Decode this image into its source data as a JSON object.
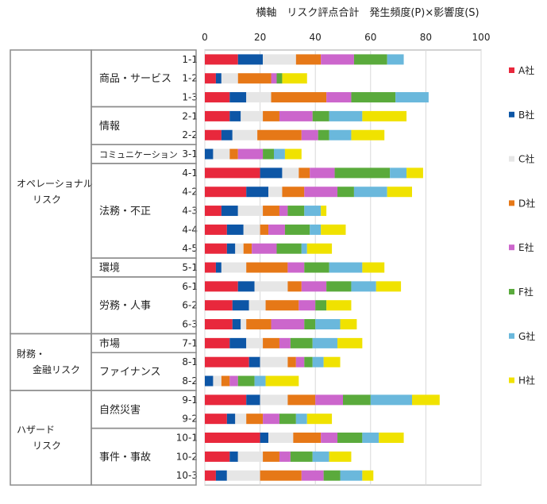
{
  "chart_data": {
    "type": "bar",
    "orientation": "horizontal",
    "stacked": true,
    "title": "横軸　リスク評点合計　発生頻度(P)×影響度(S)",
    "xlim": [
      0,
      100
    ],
    "xticks": [
      0,
      20,
      40,
      60,
      80,
      100
    ],
    "grid": "vertical",
    "legend_position": "right",
    "categories": [
      "1-1",
      "1-2",
      "1-3",
      "2-1",
      "2-2",
      "3-1",
      "4-1",
      "4-2",
      "4-3",
      "4-4",
      "4-5",
      "5-1",
      "6-1",
      "6-2",
      "6-3",
      "7-1",
      "8-1",
      "8-2",
      "9-1",
      "9-2",
      "10-1",
      "10-2",
      "10-3"
    ],
    "series": [
      {
        "name": "A社",
        "color": "#e8283c",
        "values": [
          12,
          4,
          9,
          9,
          6,
          0,
          20,
          15,
          6,
          8,
          8,
          4,
          12,
          10,
          10,
          9,
          16,
          0,
          15,
          8,
          20,
          9,
          4
        ]
      },
      {
        "name": "B社",
        "color": "#0d56a6",
        "values": [
          9,
          2,
          6,
          4,
          4,
          3,
          8,
          8,
          6,
          6,
          3,
          2,
          6,
          6,
          3,
          6,
          4,
          3,
          5,
          3,
          3,
          3,
          4
        ]
      },
      {
        "name": "C社",
        "color": "#e6e6e6",
        "values": [
          12,
          6,
          9,
          8,
          9,
          6,
          6,
          5,
          9,
          6,
          3,
          9,
          12,
          6,
          2,
          6,
          10,
          3,
          10,
          4,
          9,
          9,
          12
        ]
      },
      {
        "name": "D社",
        "color": "#e67817",
        "values": [
          9,
          12,
          20,
          6,
          16,
          3,
          4,
          8,
          6,
          3,
          3,
          15,
          5,
          12,
          9,
          6,
          3,
          3,
          10,
          6,
          10,
          6,
          15
        ]
      },
      {
        "name": "E社",
        "color": "#cc66cc",
        "values": [
          12,
          2,
          9,
          12,
          6,
          9,
          9,
          12,
          3,
          6,
          9,
          6,
          9,
          6,
          12,
          4,
          3,
          3,
          10,
          6,
          6,
          4,
          8
        ]
      },
      {
        "name": "F社",
        "color": "#5aaa3c",
        "values": [
          12,
          2,
          16,
          6,
          4,
          4,
          20,
          6,
          6,
          9,
          9,
          9,
          9,
          4,
          4,
          8,
          3,
          6,
          10,
          6,
          9,
          8,
          6
        ]
      },
      {
        "name": "G社",
        "color": "#6ab8dc",
        "values": [
          6,
          0,
          12,
          12,
          8,
          4,
          6,
          12,
          6,
          4,
          2,
          12,
          9,
          0,
          9,
          9,
          4,
          4,
          15,
          4,
          6,
          6,
          8
        ]
      },
      {
        "name": "H社",
        "color": "#f0e200",
        "values": [
          0,
          9,
          0,
          16,
          12,
          6,
          6,
          9,
          2,
          9,
          9,
          8,
          9,
          9,
          6,
          9,
          6,
          12,
          10,
          9,
          9,
          8,
          4
        ]
      }
    ],
    "groups": [
      {
        "label": "オペレーショナル\nリスク",
        "subgroups": [
          {
            "label": "商品・サービス",
            "rows": [
              "1-1",
              "1-2",
              "1-3"
            ]
          },
          {
            "label": "情報",
            "rows": [
              "2-1",
              "2-2"
            ]
          },
          {
            "label": "コミュニケーション",
            "rows": [
              "3-1"
            ]
          },
          {
            "label": "法務・不正",
            "rows": [
              "4-1",
              "4-2",
              "4-3",
              "4-4",
              "4-5"
            ]
          },
          {
            "label": "環境",
            "rows": [
              "5-1"
            ]
          },
          {
            "label": "労務・人事",
            "rows": [
              "6-1",
              "6-2",
              "6-3"
            ]
          }
        ]
      },
      {
        "label": "財務・\n金融リスク",
        "subgroups": [
          {
            "label": "市場",
            "rows": [
              "7-1"
            ]
          },
          {
            "label": "ファイナンス",
            "rows": [
              "8-1",
              "8-2"
            ]
          }
        ]
      },
      {
        "label": "ハザード\nリスク",
        "subgroups": [
          {
            "label": "自然災害",
            "rows": [
              "9-1",
              "9-2"
            ]
          },
          {
            "label": "事件・事故",
            "rows": [
              "10-1",
              "10-2",
              "10-3"
            ]
          }
        ]
      }
    ]
  }
}
